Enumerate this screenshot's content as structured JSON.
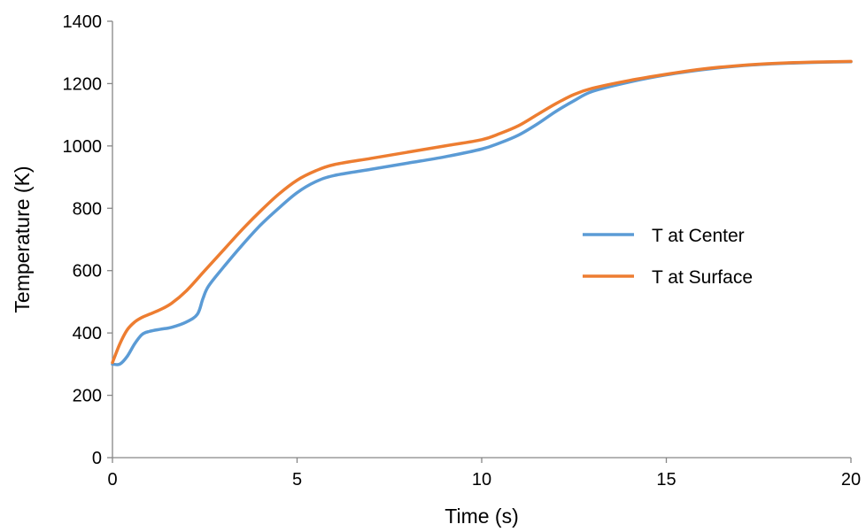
{
  "chart_data": {
    "type": "line",
    "title": "",
    "xlabel": "Time (s)",
    "ylabel": "Temperature (K)",
    "xlim": [
      0,
      20
    ],
    "ylim": [
      0,
      1400
    ],
    "xticks": [
      "0",
      "5",
      "10",
      "15",
      "20"
    ],
    "yticks": [
      "0",
      "200",
      "400",
      "600",
      "800",
      "1000",
      "1200",
      "1400"
    ],
    "grid": false,
    "legend": "right",
    "series": [
      {
        "name": "T at Center",
        "color": "#5b9bd5",
        "x": [
          0,
          0.2,
          0.4,
          0.6,
          0.8,
          1.0,
          1.3,
          1.6,
          2.0,
          2.3,
          2.45,
          2.6,
          3.0,
          3.5,
          4.0,
          4.5,
          5.0,
          5.5,
          6.0,
          7.0,
          8.0,
          9.0,
          10.0,
          10.5,
          11.0,
          11.5,
          12.0,
          12.5,
          13.0,
          14.0,
          15.0,
          16.0,
          17.0,
          18.0,
          19.0,
          20.0
        ],
        "y": [
          300,
          300,
          325,
          365,
          395,
          405,
          412,
          418,
          435,
          460,
          510,
          550,
          610,
          680,
          745,
          800,
          850,
          885,
          905,
          925,
          945,
          965,
          990,
          1010,
          1035,
          1070,
          1110,
          1145,
          1175,
          1205,
          1228,
          1245,
          1257,
          1264,
          1268,
          1270
        ]
      },
      {
        "name": "T at Surface",
        "color": "#ed7d31",
        "x": [
          0,
          0.2,
          0.4,
          0.6,
          0.8,
          1.0,
          1.3,
          1.6,
          2.0,
          2.5,
          3.0,
          3.5,
          4.0,
          4.5,
          5.0,
          5.5,
          6.0,
          7.0,
          8.0,
          9.0,
          10.0,
          10.5,
          11.0,
          11.5,
          12.0,
          12.5,
          13.0,
          14.0,
          15.0,
          16.0,
          17.0,
          18.0,
          19.0,
          20.0
        ],
        "y": [
          305,
          365,
          410,
          435,
          450,
          460,
          475,
          495,
          535,
          600,
          665,
          730,
          790,
          845,
          890,
          920,
          940,
          960,
          980,
          1000,
          1020,
          1040,
          1065,
          1100,
          1135,
          1165,
          1185,
          1210,
          1230,
          1247,
          1258,
          1265,
          1269,
          1271
        ]
      }
    ]
  }
}
